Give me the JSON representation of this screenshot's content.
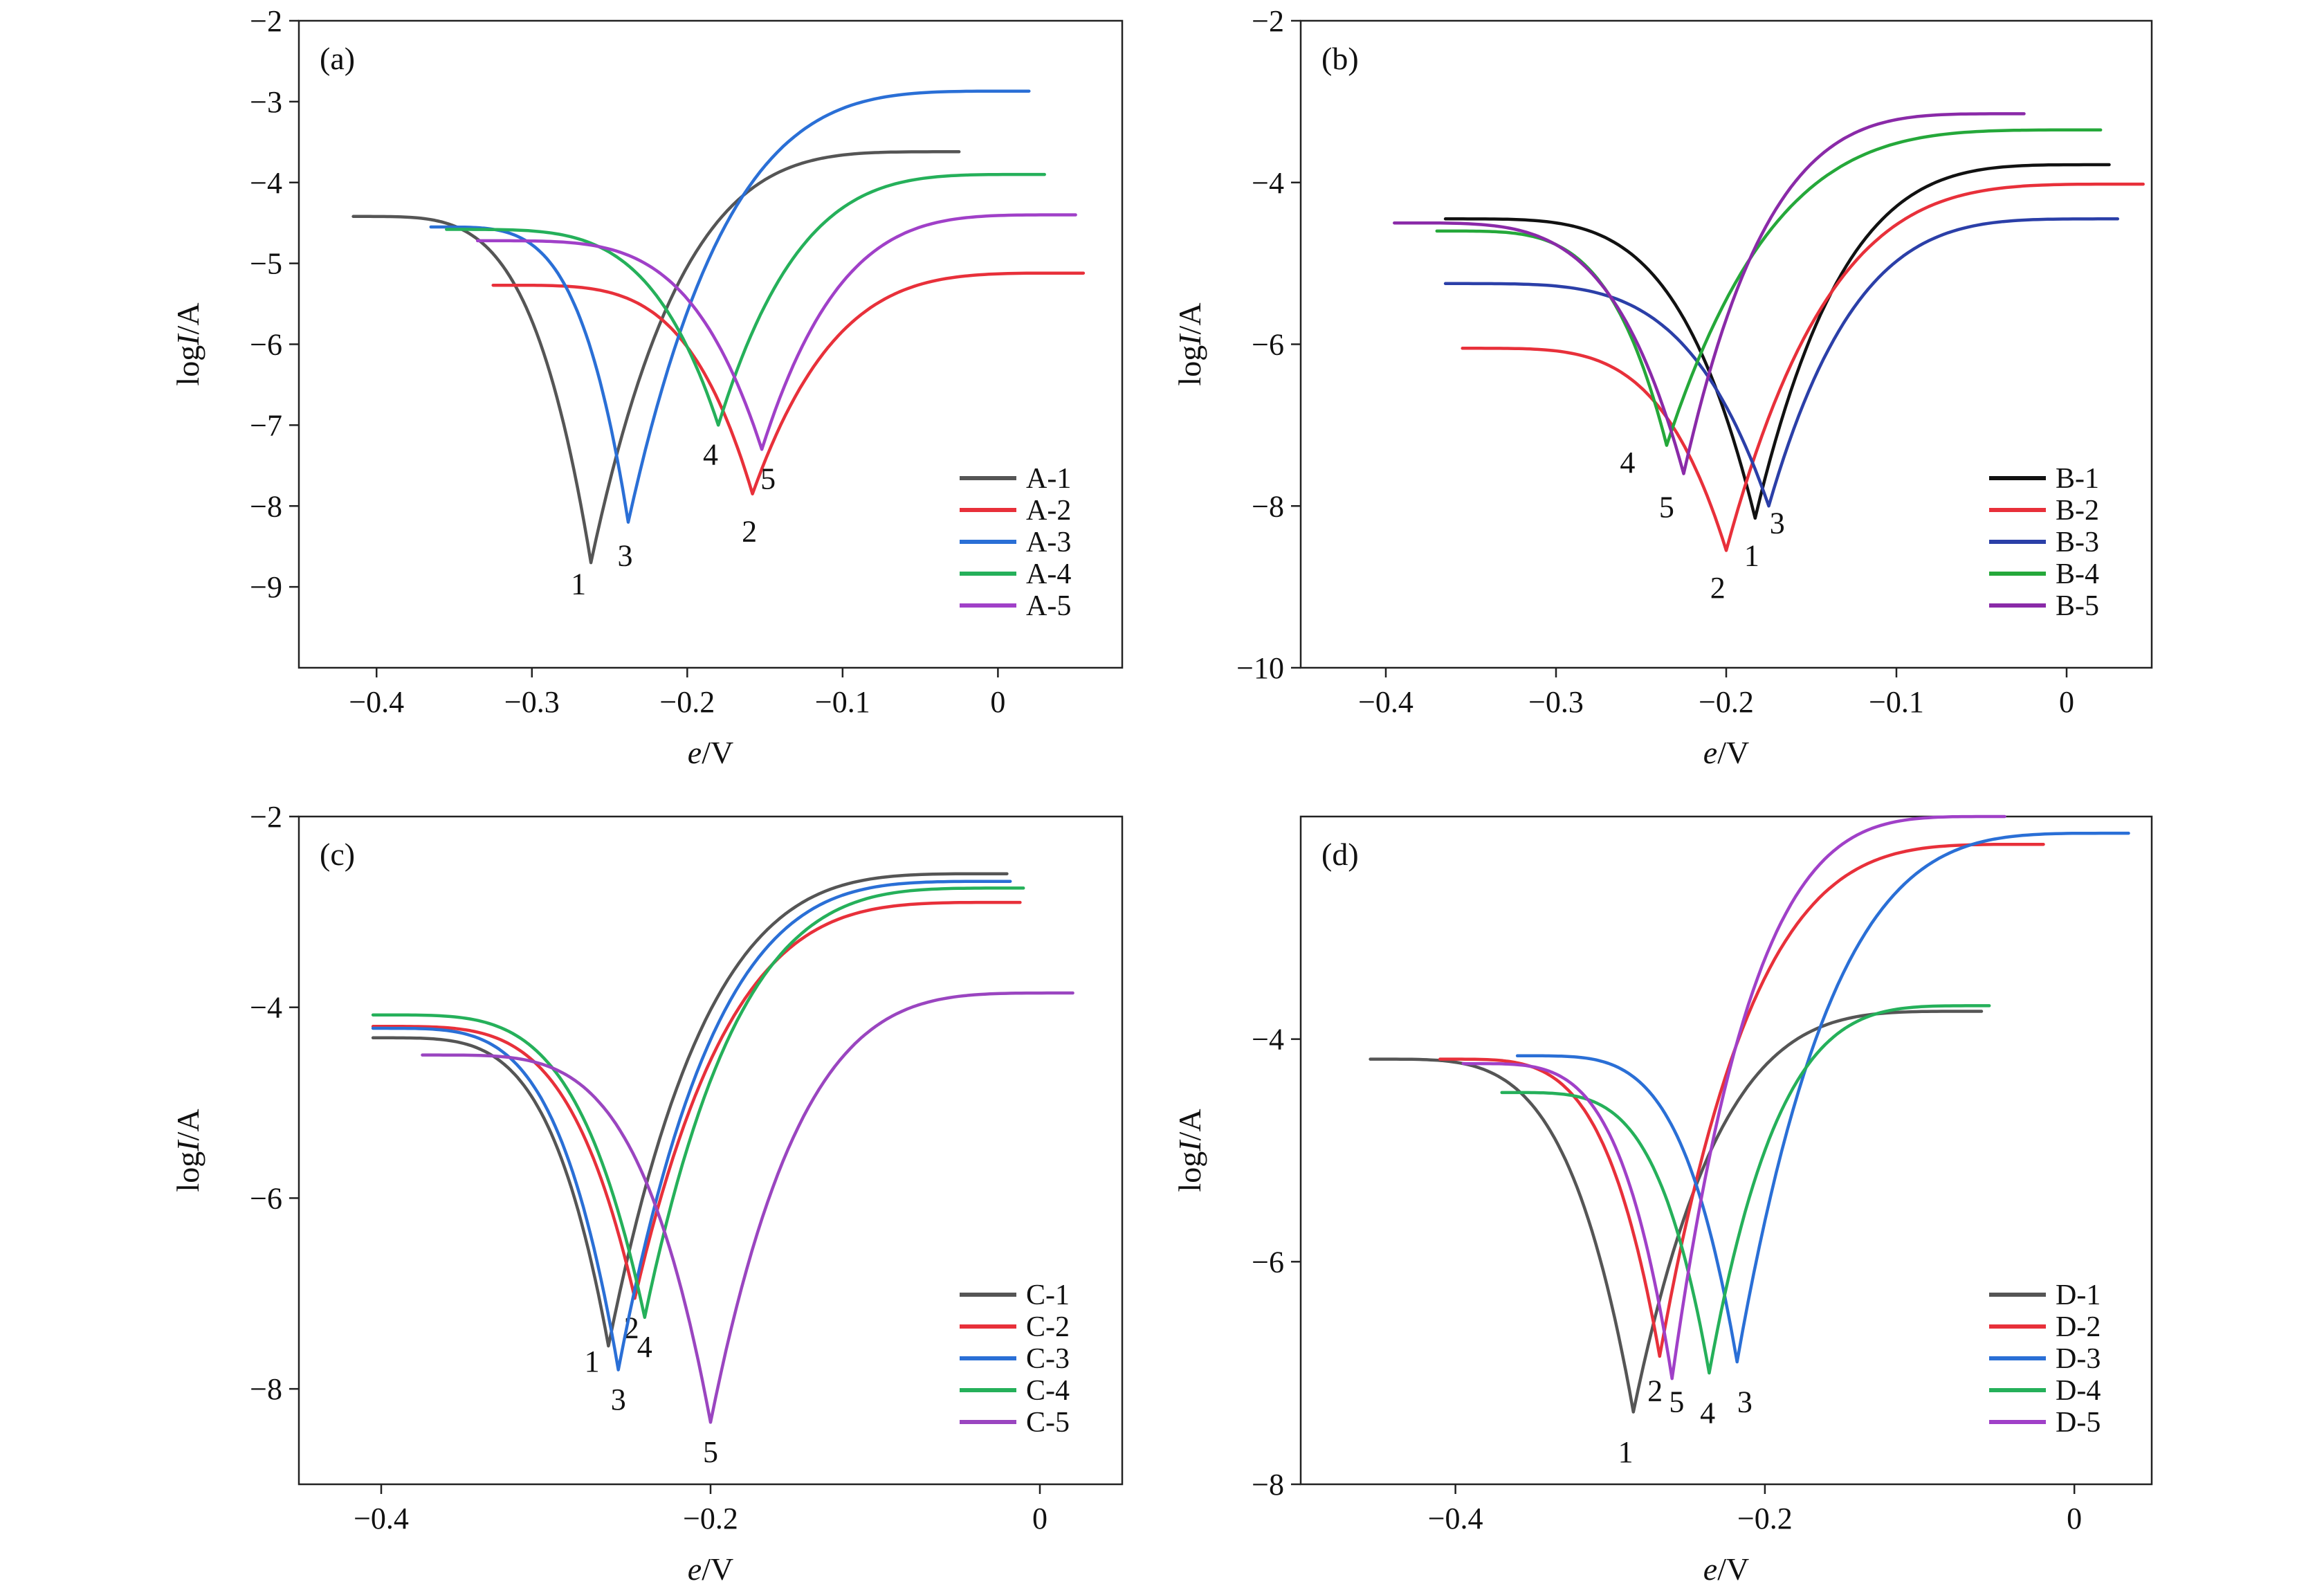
{
  "chart_data": [
    {
      "type": "line",
      "panel_label": "(a)",
      "xlabel_main": "e",
      "xlabel_unit": "/V",
      "ylabel_prefix": "log",
      "ylabel_var": "I",
      "ylabel_unit": "/A",
      "xlim": [
        -0.45,
        0.08
      ],
      "ylim": [
        -10,
        -2
      ],
      "xticks": [
        -0.4,
        -0.3,
        -0.2,
        -0.1,
        0
      ],
      "xtick_labels": [
        "−0.4",
        "−0.3",
        "−0.2",
        "−0.1",
        "0"
      ],
      "yticks": [
        -9,
        -8,
        -7,
        -6,
        -5,
        -4,
        -3,
        -2
      ],
      "ytick_labels": [
        "−9",
        "−8",
        "−7",
        "−6",
        "−5",
        "−4",
        "−3",
        "−2"
      ],
      "legend_position": "bottom-right",
      "series": [
        {
          "name": "A-1",
          "label": "1",
          "color": "#555555",
          "ecorr": -0.262,
          "min": -8.7,
          "start": [
            -0.415,
            -4.42
          ],
          "end": [
            -0.025,
            -3.62
          ],
          "label_pos": [
            -0.27,
            -8.95
          ]
        },
        {
          "name": "A-2",
          "label": "2",
          "color": "#e8303a",
          "ecorr": -0.158,
          "min": -7.85,
          "start": [
            -0.325,
            -5.27
          ],
          "end": [
            0.055,
            -5.12
          ],
          "label_pos": [
            -0.16,
            -8.3
          ]
        },
        {
          "name": "A-3",
          "label": "3",
          "color": "#2a6fd6",
          "ecorr": -0.238,
          "min": -8.2,
          "start": [
            -0.365,
            -4.55
          ],
          "end": [
            0.02,
            -2.87
          ],
          "label_pos": [
            -0.24,
            -8.6
          ]
        },
        {
          "name": "A-4",
          "label": "4",
          "color": "#25b05a",
          "ecorr": -0.18,
          "min": -7.0,
          "start": [
            -0.355,
            -4.58
          ],
          "end": [
            0.03,
            -3.9
          ],
          "label_pos": [
            -0.185,
            -7.35
          ]
        },
        {
          "name": "A-5",
          "label": "5",
          "color": "#a040c8",
          "ecorr": -0.152,
          "min": -7.3,
          "start": [
            -0.335,
            -4.72
          ],
          "end": [
            0.05,
            -4.4
          ],
          "label_pos": [
            -0.148,
            -7.65
          ]
        }
      ]
    },
    {
      "type": "line",
      "panel_label": "(b)",
      "xlabel_main": "e",
      "xlabel_unit": "/V",
      "ylabel_prefix": "log",
      "ylabel_var": "I",
      "ylabel_unit": "/A",
      "xlim": [
        -0.45,
        0.05
      ],
      "ylim": [
        -10,
        -2
      ],
      "xticks": [
        -0.4,
        -0.3,
        -0.2,
        -0.1,
        0
      ],
      "xtick_labels": [
        "−0.4",
        "−0.3",
        "−0.2",
        "−0.1",
        "0"
      ],
      "yticks": [
        -10,
        -8,
        -6,
        -4,
        -2
      ],
      "ytick_labels": [
        "−10",
        "−8",
        "−6",
        "−4",
        "−2"
      ],
      "legend_position": "bottom-right",
      "series": [
        {
          "name": "B-1",
          "label": "1",
          "color": "#111111",
          "ecorr": -0.183,
          "min": -8.15,
          "start": [
            -0.365,
            -4.45
          ],
          "end": [
            0.025,
            -3.78
          ],
          "label_pos": [
            -0.185,
            -8.6
          ]
        },
        {
          "name": "B-2",
          "label": "2",
          "color": "#e8303a",
          "ecorr": -0.2,
          "min": -8.55,
          "start": [
            -0.355,
            -6.05
          ],
          "end": [
            0.045,
            -4.02
          ],
          "label_pos": [
            -0.205,
            -9.0
          ]
        },
        {
          "name": "B-3",
          "label": "3",
          "color": "#2b3fa8",
          "ecorr": -0.175,
          "min": -8.0,
          "start": [
            -0.365,
            -5.25
          ],
          "end": [
            0.03,
            -4.45
          ],
          "label_pos": [
            -0.17,
            -8.2
          ]
        },
        {
          "name": "B-4",
          "label": "4",
          "color": "#25a83a",
          "ecorr": -0.235,
          "min": -7.25,
          "start": [
            -0.37,
            -4.6
          ],
          "end": [
            0.02,
            -3.35
          ],
          "label_pos": [
            -0.258,
            -7.45
          ]
        },
        {
          "name": "B-5",
          "label": "5",
          "color": "#8a2aa8",
          "ecorr": -0.225,
          "min": -7.6,
          "start": [
            -0.395,
            -4.5
          ],
          "end": [
            -0.025,
            -3.15
          ],
          "label_pos": [
            -0.235,
            -8.0
          ]
        }
      ]
    },
    {
      "type": "line",
      "panel_label": "(c)",
      "xlabel_main": "e",
      "xlabel_unit": "/V",
      "ylabel_prefix": "log",
      "ylabel_var": "I",
      "ylabel_unit": "/A",
      "xlim": [
        -0.45,
        0.05
      ],
      "ylim": [
        -9,
        -2
      ],
      "xticks": [
        -0.4,
        -0.2,
        0
      ],
      "xtick_labels": [
        "−0.4",
        "−0.2",
        "0"
      ],
      "yticks": [
        -8,
        -6,
        -4,
        -2
      ],
      "ytick_labels": [
        "−8",
        "−6",
        "−4",
        "−2"
      ],
      "legend_position": "bottom-right",
      "series": [
        {
          "name": "C-1",
          "label": "1",
          "color": "#555555",
          "ecorr": -0.262,
          "min": -7.55,
          "start": [
            -0.405,
            -4.32
          ],
          "end": [
            -0.02,
            -2.6
          ],
          "label_pos": [
            -0.272,
            -7.7
          ]
        },
        {
          "name": "C-2",
          "label": "2",
          "color": "#e8303a",
          "ecorr": -0.246,
          "min": -7.05,
          "start": [
            -0.405,
            -4.2
          ],
          "end": [
            -0.012,
            -2.9
          ],
          "label_pos": [
            -0.248,
            -7.35
          ]
        },
        {
          "name": "C-3",
          "label": "3",
          "color": "#2a6fd6",
          "ecorr": -0.256,
          "min": -7.8,
          "start": [
            -0.405,
            -4.22
          ],
          "end": [
            -0.018,
            -2.68
          ],
          "label_pos": [
            -0.256,
            -8.1
          ]
        },
        {
          "name": "C-4",
          "label": "4",
          "color": "#25b05a",
          "ecorr": -0.24,
          "min": -7.25,
          "start": [
            -0.405,
            -4.08
          ],
          "end": [
            -0.01,
            -2.75
          ],
          "label_pos": [
            -0.24,
            -7.55
          ]
        },
        {
          "name": "C-5",
          "label": "5",
          "color": "#9a45c0",
          "ecorr": -0.2,
          "min": -8.35,
          "start": [
            -0.375,
            -4.5
          ],
          "end": [
            0.02,
            -3.85
          ],
          "label_pos": [
            -0.2,
            -8.65
          ]
        }
      ]
    },
    {
      "type": "line",
      "panel_label": "(d)",
      "xlabel_main": "e",
      "xlabel_unit": "/V",
      "ylabel_prefix": "log",
      "ylabel_var": "I",
      "ylabel_unit": "/A",
      "xlim": [
        -0.5,
        0.05
      ],
      "ylim": [
        -8,
        -2
      ],
      "xticks": [
        -0.4,
        -0.2,
        0
      ],
      "xtick_labels": [
        "−0.4",
        "−0.2",
        "0"
      ],
      "yticks": [
        -8,
        -6,
        -4
      ],
      "ytick_labels": [
        "−8",
        "−6",
        "−4"
      ],
      "legend_position": "bottom-right",
      "series": [
        {
          "name": "D-1",
          "label": "1",
          "color": "#555555",
          "ecorr": -0.285,
          "min": -7.35,
          "start": [
            -0.455,
            -4.18
          ],
          "end": [
            -0.06,
            -3.75
          ],
          "label_pos": [
            -0.29,
            -7.7
          ]
        },
        {
          "name": "D-2",
          "label": "2",
          "color": "#e8303a",
          "ecorr": -0.268,
          "min": -6.85,
          "start": [
            -0.41,
            -4.18
          ],
          "end": [
            -0.02,
            -2.25
          ],
          "label_pos": [
            -0.271,
            -7.15
          ]
        },
        {
          "name": "D-3",
          "label": "3",
          "color": "#2a6fd6",
          "ecorr": -0.218,
          "min": -6.9,
          "start": [
            -0.36,
            -4.15
          ],
          "end": [
            0.035,
            -2.15
          ],
          "label_pos": [
            -0.213,
            -7.25
          ]
        },
        {
          "name": "D-4",
          "label": "4",
          "color": "#25b05a",
          "ecorr": -0.236,
          "min": -7.0,
          "start": [
            -0.37,
            -4.48
          ],
          "end": [
            -0.055,
            -3.7
          ],
          "label_pos": [
            -0.237,
            -7.35
          ]
        },
        {
          "name": "D-5",
          "label": "5",
          "color": "#a040c8",
          "ecorr": -0.26,
          "min": -7.05,
          "start": [
            -0.395,
            -4.22
          ],
          "end": [
            -0.045,
            -2.0
          ],
          "label_pos": [
            -0.257,
            -7.25
          ]
        }
      ]
    }
  ]
}
